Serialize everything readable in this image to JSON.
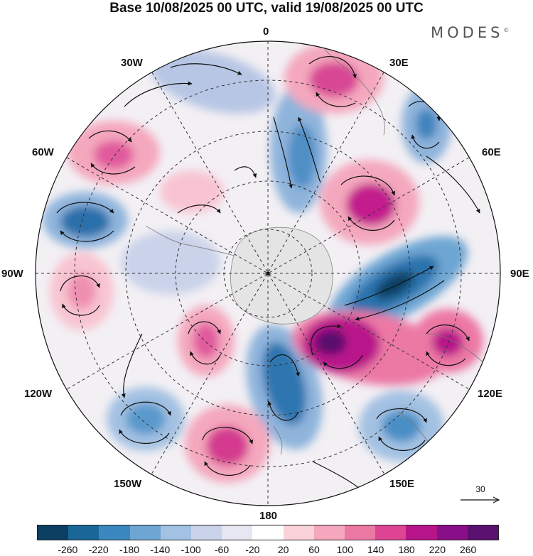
{
  "title": "Base 10/08/2025 00 UTC, valid 19/08/2025 00 UTC",
  "brand": "MODES",
  "brand_mark": "©",
  "map": {
    "projection": "south-polar-stereographic",
    "longitude_labels": {
      "n": "0",
      "ne": "30E",
      "ene": "60E",
      "e": "90E",
      "ese": "120E",
      "se": "150E",
      "s": "180",
      "sw": "150W",
      "wsw": "120W",
      "w": "90W",
      "wnw": "60W",
      "nw": "30W"
    },
    "reference_vector": "30"
  },
  "colorbar": {
    "colors": [
      "#0d3f63",
      "#1a6696",
      "#3a88bf",
      "#6ea6d3",
      "#a3c1e2",
      "#cbd3ea",
      "#e7e7f3",
      "#ffffff",
      "#fad3da",
      "#f4a7bd",
      "#ec78a4",
      "#dd4594",
      "#b8148a",
      "#880f87",
      "#5a106e"
    ],
    "tick_labels": [
      "-260",
      "-220",
      "-180",
      "-140",
      "-100",
      "-60",
      "-20",
      "20",
      "60",
      "100",
      "140",
      "180",
      "220",
      "260"
    ]
  }
}
